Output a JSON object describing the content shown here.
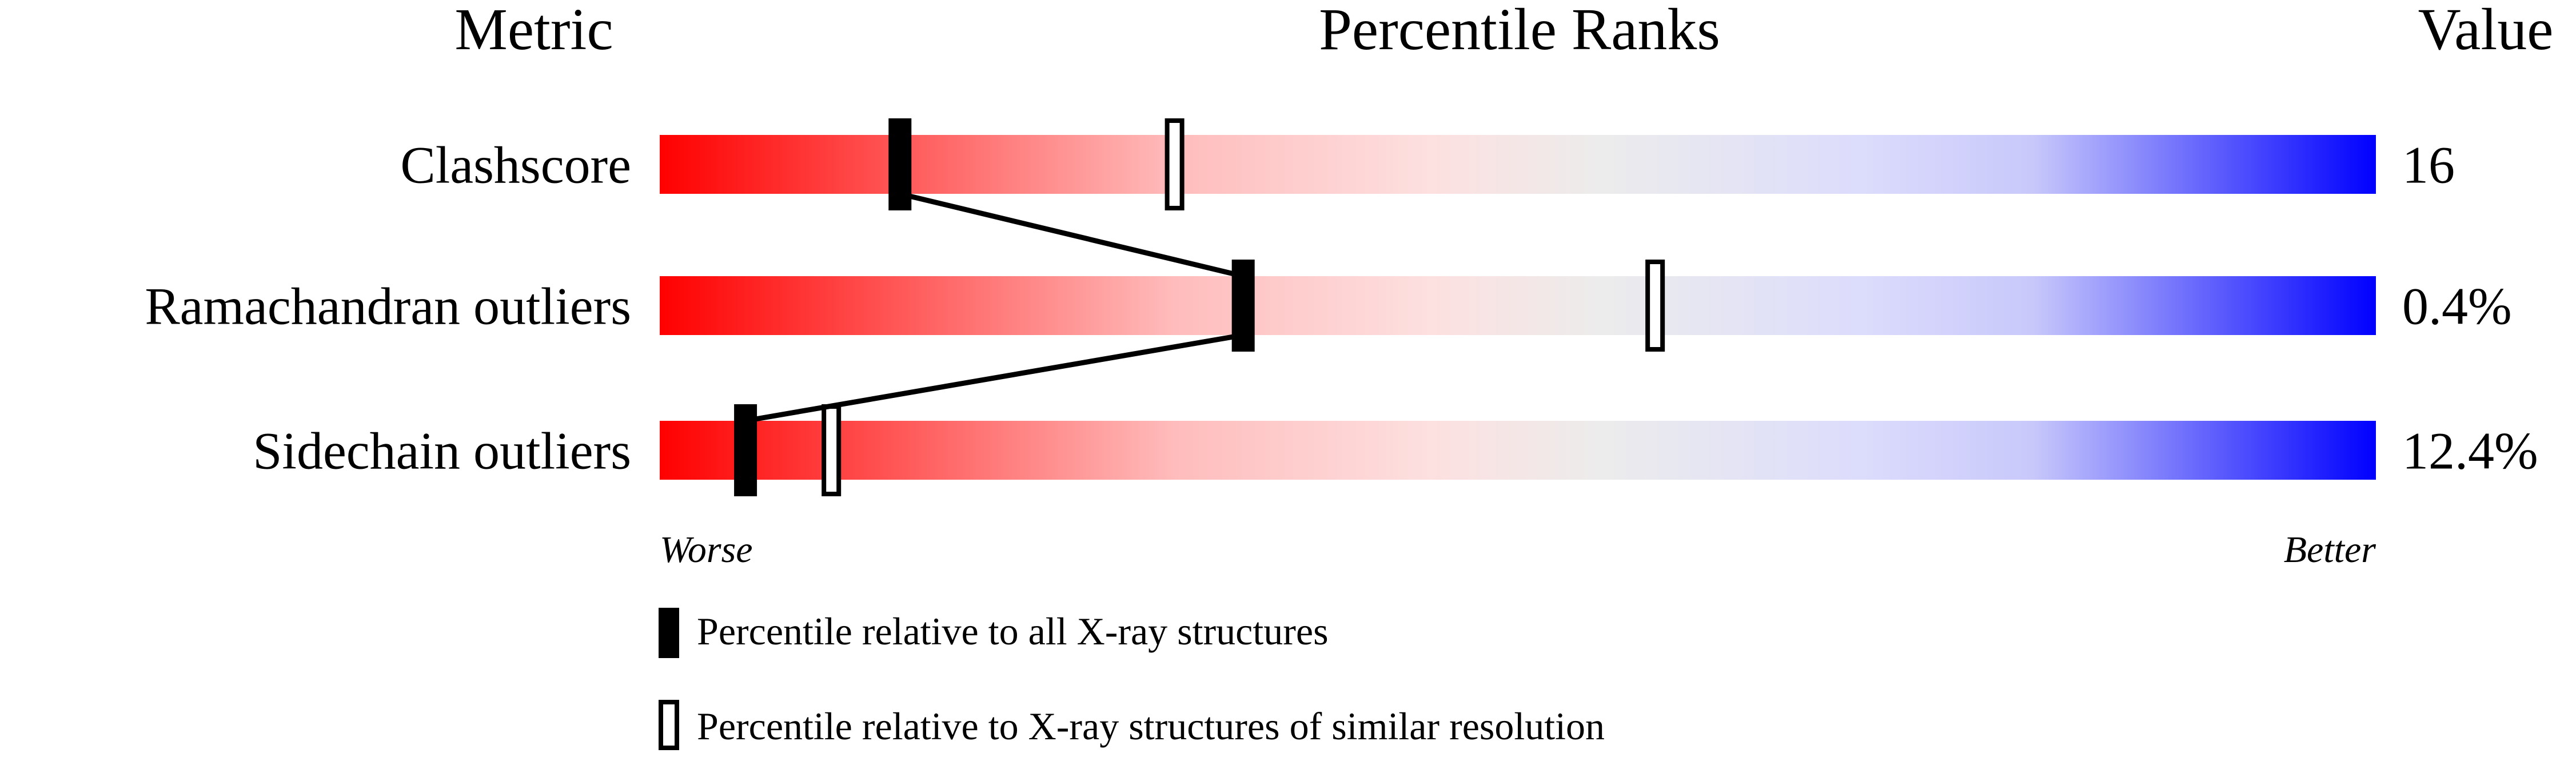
{
  "chart_data": {
    "type": "bar",
    "title": "Percentile Ranks",
    "header_left": "Metric",
    "header_right": "Value",
    "xlim": [
      0,
      100
    ],
    "metrics": [
      {
        "name": "Clashscore",
        "value": "16",
        "percentile_all": 14,
        "percentile_similar": 30
      },
      {
        "name": "Ramachandran outliers",
        "value": "0.4%",
        "percentile_all": 34,
        "percentile_similar": 58
      },
      {
        "name": "Sidechain outliers",
        "value": "12.4%",
        "percentile_all": 5,
        "percentile_similar": 10
      }
    ],
    "axis_left_label": "Worse",
    "axis_right_label": "Better",
    "legend": {
      "filled": "Percentile relative to all X-ray structures",
      "open": "Percentile relative to X-ray structures of similar resolution"
    },
    "colors": {
      "worse": "#ff0000",
      "middle": "#eeeeee",
      "better": "#0000ff",
      "marker": "#000000"
    }
  }
}
